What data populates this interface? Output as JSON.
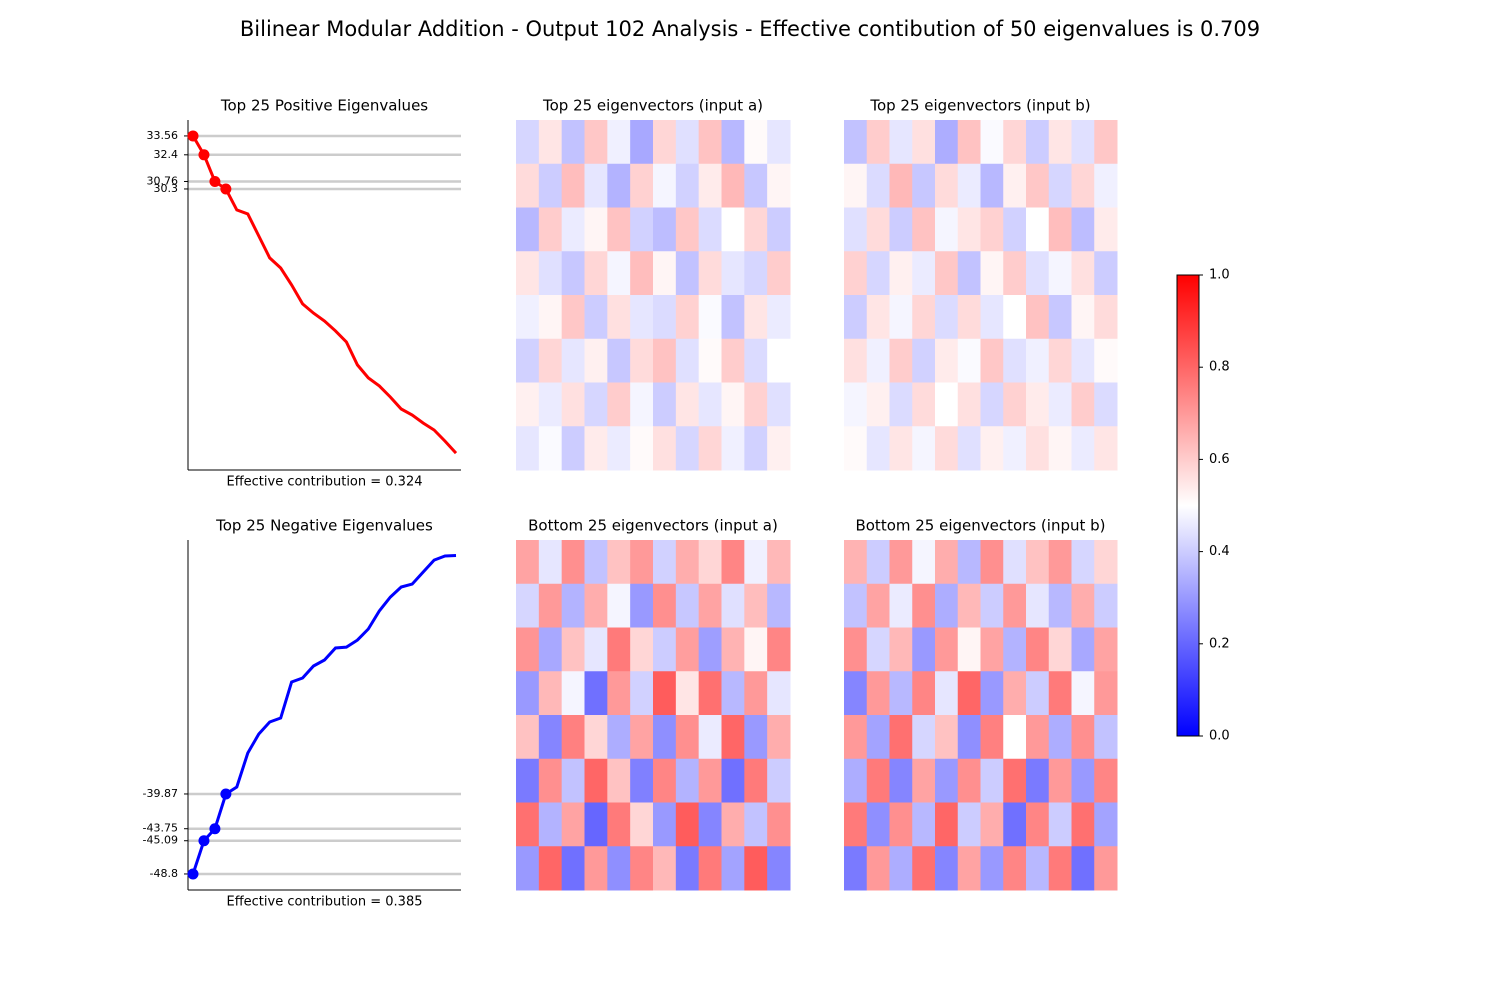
{
  "title": "Bilinear Modular Addition - Output 102 Analysis - Effective contibution of 50 eigenvalues is 0.709",
  "chart_data": [
    {
      "type": "line",
      "title": "Top 25 Positive Eigenvalues",
      "xlabel": "Effective contribution = 0.324",
      "color": "#ff0000",
      "values": [
        33.56,
        32.4,
        30.76,
        30.3,
        29.01,
        28.76,
        27.41,
        26.06,
        25.44,
        24.4,
        23.23,
        22.67,
        22.18,
        21.57,
        20.89,
        19.48,
        18.68,
        18.19,
        17.51,
        16.77,
        16.4,
        15.91,
        15.48,
        14.8,
        14.06
      ],
      "ylim": [
        13.02,
        34.54
      ],
      "yticks": [
        33.56,
        32.4,
        30.76,
        30.3
      ],
      "grid": true
    },
    {
      "type": "line",
      "title": "Top 25 Negative Eigenvalues",
      "xlabel": "Effective contribution = 0.385",
      "color": "#0000ff",
      "values": [
        -48.8,
        -45.09,
        -43.75,
        -39.87,
        -39.09,
        -35.3,
        -33.18,
        -31.84,
        -31.39,
        -27.37,
        -26.93,
        -25.59,
        -24.92,
        -23.58,
        -23.47,
        -22.69,
        -21.46,
        -19.45,
        -17.89,
        -16.77,
        -16.44,
        -15.1,
        -13.76,
        -13.31,
        -13.25
      ],
      "ylim": [
        -50.59,
        -11.52
      ],
      "yticks": [
        -39.87,
        -43.75,
        -45.09,
        -48.8
      ],
      "grid": true
    },
    {
      "type": "heatmap",
      "title": "Top 25 eigenvectors (input a)",
      "values": [
        [
          0.42,
          0.55,
          0.38,
          0.61,
          0.47,
          0.33,
          0.58,
          0.44,
          0.62,
          0.36,
          0.51,
          0.45
        ],
        [
          0.57,
          0.4,
          0.63,
          0.45,
          0.35,
          0.59,
          0.48,
          0.41,
          0.54,
          0.64,
          0.39,
          0.52
        ],
        [
          0.36,
          0.6,
          0.46,
          0.52,
          0.62,
          0.41,
          0.37,
          0.61,
          0.43,
          0.5,
          0.58,
          0.4
        ],
        [
          0.55,
          0.44,
          0.39,
          0.58,
          0.48,
          0.63,
          0.52,
          0.38,
          0.57,
          0.45,
          0.42,
          0.6
        ],
        [
          0.47,
          0.52,
          0.61,
          0.4,
          0.56,
          0.45,
          0.43,
          0.59,
          0.49,
          0.38,
          0.55,
          0.46
        ],
        [
          0.41,
          0.58,
          0.45,
          0.53,
          0.39,
          0.57,
          0.62,
          0.44,
          0.51,
          0.6,
          0.43,
          0.5
        ],
        [
          0.53,
          0.46,
          0.56,
          0.42,
          0.6,
          0.48,
          0.4,
          0.55,
          0.45,
          0.52,
          0.59,
          0.44
        ],
        [
          0.45,
          0.49,
          0.4,
          0.54,
          0.46,
          0.51,
          0.56,
          0.42,
          0.58,
          0.47,
          0.41,
          0.53
        ]
      ]
    },
    {
      "type": "heatmap",
      "title": "Top 25 eigenvectors (input b)",
      "values": [
        [
          0.38,
          0.6,
          0.45,
          0.56,
          0.34,
          0.62,
          0.49,
          0.58,
          0.4,
          0.55,
          0.44,
          0.61
        ],
        [
          0.52,
          0.43,
          0.64,
          0.39,
          0.57,
          0.46,
          0.36,
          0.53,
          0.61,
          0.42,
          0.58,
          0.47
        ],
        [
          0.44,
          0.57,
          0.4,
          0.62,
          0.48,
          0.55,
          0.59,
          0.41,
          0.5,
          0.63,
          0.37,
          0.54
        ],
        [
          0.59,
          0.42,
          0.53,
          0.46,
          0.61,
          0.38,
          0.52,
          0.6,
          0.44,
          0.48,
          0.56,
          0.4
        ],
        [
          0.4,
          0.55,
          0.48,
          0.58,
          0.43,
          0.57,
          0.45,
          0.5,
          0.62,
          0.39,
          0.52,
          0.57
        ],
        [
          0.56,
          0.47,
          0.6,
          0.41,
          0.54,
          0.49,
          0.61,
          0.44,
          0.47,
          0.58,
          0.45,
          0.51
        ],
        [
          0.48,
          0.53,
          0.43,
          0.57,
          0.5,
          0.56,
          0.42,
          0.59,
          0.54,
          0.46,
          0.6,
          0.43
        ],
        [
          0.51,
          0.45,
          0.55,
          0.48,
          0.57,
          0.44,
          0.53,
          0.47,
          0.56,
          0.52,
          0.46,
          0.55
        ]
      ]
    },
    {
      "type": "heatmap",
      "title": "Bottom 25 eigenvectors (input a)",
      "values": [
        [
          0.68,
          0.45,
          0.72,
          0.38,
          0.62,
          0.7,
          0.41,
          0.66,
          0.58,
          0.74,
          0.47,
          0.64
        ],
        [
          0.42,
          0.7,
          0.35,
          0.66,
          0.48,
          0.3,
          0.72,
          0.39,
          0.68,
          0.44,
          0.63,
          0.36
        ],
        [
          0.71,
          0.33,
          0.62,
          0.45,
          0.76,
          0.58,
          0.4,
          0.69,
          0.31,
          0.65,
          0.52,
          0.74
        ],
        [
          0.3,
          0.64,
          0.48,
          0.22,
          0.7,
          0.41,
          0.82,
          0.55,
          0.78,
          0.36,
          0.7,
          0.45
        ],
        [
          0.62,
          0.26,
          0.75,
          0.58,
          0.34,
          0.68,
          0.28,
          0.72,
          0.46,
          0.8,
          0.3,
          0.66
        ],
        [
          0.24,
          0.72,
          0.38,
          0.8,
          0.62,
          0.25,
          0.74,
          0.35,
          0.7,
          0.22,
          0.76,
          0.4
        ],
        [
          0.78,
          0.35,
          0.68,
          0.2,
          0.76,
          0.58,
          0.3,
          0.82,
          0.26,
          0.66,
          0.38,
          0.72
        ],
        [
          0.3,
          0.8,
          0.22,
          0.7,
          0.28,
          0.74,
          0.64,
          0.24,
          0.76,
          0.32,
          0.82,
          0.26
        ]
      ]
    },
    {
      "type": "heatmap",
      "title": "Bottom 25 eigenvectors (input b)",
      "values": [
        [
          0.65,
          0.4,
          0.7,
          0.48,
          0.66,
          0.36,
          0.72,
          0.44,
          0.62,
          0.7,
          0.42,
          0.58
        ],
        [
          0.38,
          0.68,
          0.46,
          0.72,
          0.34,
          0.64,
          0.4,
          0.7,
          0.45,
          0.36,
          0.66,
          0.4
        ],
        [
          0.72,
          0.42,
          0.64,
          0.3,
          0.7,
          0.52,
          0.68,
          0.35,
          0.74,
          0.58,
          0.33,
          0.68
        ],
        [
          0.26,
          0.7,
          0.36,
          0.74,
          0.45,
          0.8,
          0.3,
          0.66,
          0.4,
          0.76,
          0.48,
          0.7
        ],
        [
          0.7,
          0.32,
          0.78,
          0.42,
          0.62,
          0.28,
          0.75,
          0.5,
          0.7,
          0.34,
          0.72,
          0.38
        ],
        [
          0.34,
          0.76,
          0.26,
          0.68,
          0.3,
          0.72,
          0.4,
          0.78,
          0.24,
          0.7,
          0.3,
          0.74
        ],
        [
          0.76,
          0.28,
          0.72,
          0.36,
          0.8,
          0.4,
          0.66,
          0.22,
          0.74,
          0.4,
          0.78,
          0.32
        ],
        [
          0.24,
          0.7,
          0.34,
          0.78,
          0.26,
          0.68,
          0.3,
          0.74,
          0.36,
          0.76,
          0.22,
          0.7
        ]
      ]
    },
    {
      "type": "colorbar",
      "colors": [
        "#0000ff",
        "#ffffff",
        "#ff0000"
      ],
      "ylim": [
        0,
        1
      ],
      "yticks": [
        {
          "value": 0,
          "label": "0.0"
        },
        0.2,
        0.4,
        0.6,
        0.8,
        {
          "value": 1,
          "label": "1.0"
        }
      ]
    }
  ]
}
